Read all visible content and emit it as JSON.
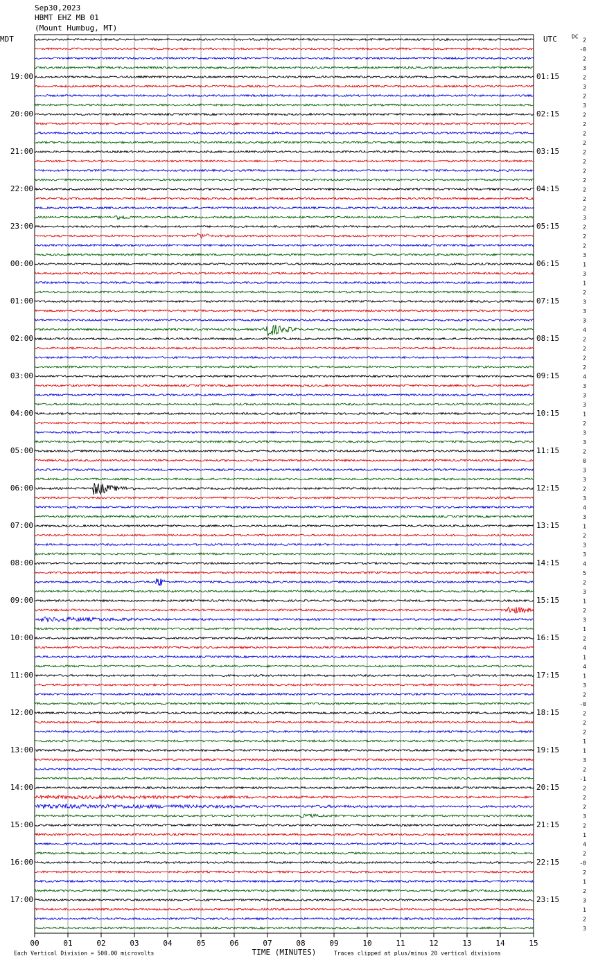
{
  "chart_data": {
    "type": "helicorder",
    "title_lines": [
      "Sep30,2023",
      "HBMT EHZ MB 01",
      "(Mount Humbug, MT)"
    ],
    "left_zone": "MDT",
    "right_zone": "UTC",
    "dc_header": "DC",
    "left_labels": [
      null,
      "19:00",
      "20:00",
      "21:00",
      "22:00",
      "23:00",
      "00:00",
      "01:00",
      "02:00",
      "03:00",
      "04:00",
      "05:00",
      "06:00",
      "07:00",
      "08:00",
      "09:00",
      "10:00",
      "11:00",
      "12:00",
      "13:00",
      "14:00",
      "15:00",
      "16:00",
      "17:00"
    ],
    "right_labels": [
      null,
      "01:15",
      "02:15",
      "03:15",
      "04:15",
      "05:15",
      "06:15",
      "07:15",
      "08:15",
      "09:15",
      "10:15",
      "11:15",
      "12:15",
      "13:15",
      "14:15",
      "15:15",
      "16:15",
      "17:15",
      "18:15",
      "19:15",
      "20:15",
      "21:15",
      "22:15",
      "23:15"
    ],
    "dc_offsets": [
      "2",
      "-0",
      "2",
      "3",
      "2",
      "3",
      "2",
      "3",
      "2",
      "2",
      "2",
      "2",
      "2",
      "2",
      "2",
      "2",
      "2",
      "2",
      "2",
      "3",
      "2",
      "2",
      "2",
      "3",
      "1",
      "3",
      "1",
      "2",
      "3",
      "3",
      "3",
      "4",
      "2",
      "2",
      "2",
      "2",
      "4",
      "3",
      "3",
      "3",
      "1",
      "2",
      "3",
      "3",
      "2",
      "0",
      "3",
      "3",
      "2",
      "3",
      "4",
      "3",
      "1",
      "2",
      "3",
      "3",
      "4",
      "5",
      "2",
      "3",
      "1",
      "2",
      "3",
      "1",
      "2",
      "4",
      "1",
      "4",
      "1",
      "3",
      "2",
      "-0",
      "2",
      "2",
      "2",
      "1",
      "1",
      "3",
      "2",
      "-1",
      "2",
      "2",
      "2",
      "3",
      "2",
      "1",
      "4",
      "2",
      "-0",
      "2",
      "1",
      "2",
      "3",
      "1",
      "2",
      "3"
    ],
    "trace_colors": [
      "#000000",
      "#e00000",
      "#0000e0",
      "#006000"
    ],
    "x_label": "TIME (MINUTES)",
    "xlim": [
      0,
      15
    ],
    "xticks": [
      {
        "value": 0,
        "label": "00"
      },
      {
        "value": 1,
        "label": "01"
      },
      {
        "value": 2,
        "label": "02"
      },
      {
        "value": 3,
        "label": "03"
      },
      {
        "value": 4,
        "label": "04"
      },
      {
        "value": 5,
        "label": "05"
      },
      {
        "value": 6,
        "label": "06"
      },
      {
        "value": 7,
        "label": "07"
      },
      {
        "value": 8,
        "label": "08"
      },
      {
        "value": 9,
        "label": "09"
      },
      {
        "value": 10,
        "label": "10"
      },
      {
        "value": 11,
        "label": "11"
      },
      {
        "value": 12,
        "label": "12"
      },
      {
        "value": 13,
        "label": "13"
      },
      {
        "value": 14,
        "label": "14"
      },
      {
        "value": 15,
        "label": "15"
      }
    ],
    "scale_note": "Each Vertical Division =  500.00 microvolts",
    "clip_note": "Traces clipped at plus/minus 20 vertical divisions",
    "grid": true
  }
}
